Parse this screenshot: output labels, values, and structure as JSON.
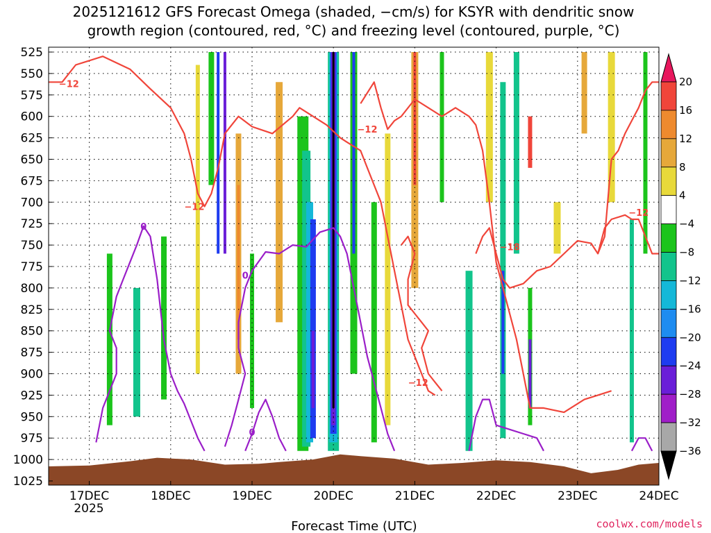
{
  "chart_data": {
    "type": "heatmap",
    "title_line1": "2025121612 GFS Forecast Omega (shaded, −cm/s) for KSYR with dendritic snow",
    "title_line2": "growth region (contoured, red, °C) and freezing level (contoured, purple, °C)",
    "xlabel": "Forecast Time (UTC)",
    "credit": "coolwx.com/models",
    "x_ticks": [
      "17DEC",
      "18DEC",
      "19DEC",
      "20DEC",
      "21DEC",
      "22DEC",
      "23DEC",
      "24DEC"
    ],
    "x_year": "2025",
    "x_range_hours": [
      -12,
      168
    ],
    "y_ticks": [
      "525",
      "550",
      "575",
      "600",
      "625",
      "650",
      "675",
      "700",
      "725",
      "750",
      "775",
      "800",
      "825",
      "850",
      "875",
      "900",
      "925",
      "950",
      "975",
      "1000",
      "1025"
    ],
    "y_range_hpa": [
      1025,
      525
    ],
    "colorbar_ticks": [
      "20",
      "16",
      "12",
      "8",
      "4",
      "−4",
      "−8",
      "−12",
      "−16",
      "−20",
      "−24",
      "−28",
      "−32",
      "−36"
    ],
    "colorbar_colors": [
      "#e8175d",
      "#f0453a",
      "#ee8a2e",
      "#e6a83a",
      "#e8d93a",
      "#ffffff",
      "#1cc41c",
      "#12c48c",
      "#14b8d8",
      "#1e8cf0",
      "#1e3cf0",
      "#6a1ed8",
      "#a01ec8",
      "#a8a8a8",
      "#000000"
    ],
    "omega_columns": [
      {
        "hour": 6,
        "width": 8,
        "top": 760,
        "bottom": 960,
        "color": "#1cc41c"
      },
      {
        "hour": 14,
        "width": 10,
        "top": 800,
        "bottom": 950,
        "color": "#12c48c"
      },
      {
        "hour": 22,
        "width": 8,
        "top": 740,
        "bottom": 930,
        "color": "#1cc41c"
      },
      {
        "hour": 32,
        "width": 6,
        "top": 540,
        "bottom": 900,
        "color": "#e8d93a"
      },
      {
        "hour": 36,
        "width": 8,
        "top": 525,
        "bottom": 680,
        "color": "#1cc41c"
      },
      {
        "hour": 38,
        "width": 4,
        "top": 525,
        "bottom": 760,
        "color": "#1e3cf0"
      },
      {
        "hour": 40,
        "width": 4,
        "top": 525,
        "bottom": 760,
        "color": "#6a1ed8"
      },
      {
        "hour": 44,
        "width": 8,
        "top": 620,
        "bottom": 900,
        "color": "#e6a83a"
      },
      {
        "hour": 44,
        "width": 4,
        "top": 680,
        "bottom": 860,
        "color": "#ee8a2e"
      },
      {
        "hour": 48,
        "width": 6,
        "top": 760,
        "bottom": 940,
        "color": "#1cc41c"
      },
      {
        "hour": 56,
        "width": 10,
        "top": 560,
        "bottom": 840,
        "color": "#e6a83a"
      },
      {
        "hour": 63,
        "width": 16,
        "top": 600,
        "bottom": 990,
        "color": "#1cc41c"
      },
      {
        "hour": 64,
        "width": 12,
        "top": 640,
        "bottom": 985,
        "color": "#12c48c"
      },
      {
        "hour": 65,
        "width": 10,
        "top": 700,
        "bottom": 980,
        "color": "#14b8d8"
      },
      {
        "hour": 66,
        "width": 8,
        "top": 720,
        "bottom": 975,
        "color": "#1e3cf0"
      },
      {
        "hour": 66,
        "width": 4,
        "top": 850,
        "bottom": 940,
        "color": "#6a1ed8"
      },
      {
        "hour": 72,
        "width": 16,
        "top": 525,
        "bottom": 990,
        "color": "#12c48c"
      },
      {
        "hour": 72,
        "width": 12,
        "top": 525,
        "bottom": 980,
        "color": "#14b8d8"
      },
      {
        "hour": 72,
        "width": 9,
        "top": 525,
        "bottom": 970,
        "color": "#1e3cf0"
      },
      {
        "hour": 72,
        "width": 6,
        "top": 525,
        "bottom": 960,
        "color": "#6a1ed8"
      },
      {
        "hour": 72,
        "width": 3,
        "top": 525,
        "bottom": 940,
        "color": "#000000"
      },
      {
        "hour": 78,
        "width": 10,
        "top": 525,
        "bottom": 900,
        "color": "#1cc41c"
      },
      {
        "hour": 78,
        "width": 4,
        "top": 525,
        "bottom": 760,
        "color": "#1e3cf0"
      },
      {
        "hour": 84,
        "width": 8,
        "top": 700,
        "bottom": 980,
        "color": "#1cc41c"
      },
      {
        "hour": 88,
        "width": 8,
        "top": 620,
        "bottom": 960,
        "color": "#e8d93a"
      },
      {
        "hour": 96,
        "width": 10,
        "top": 525,
        "bottom": 800,
        "color": "#e6a83a"
      },
      {
        "hour": 96,
        "width": 4,
        "top": 525,
        "bottom": 680,
        "color": "#f0453a"
      },
      {
        "hour": 104,
        "width": 6,
        "top": 525,
        "bottom": 700,
        "color": "#1cc41c"
      },
      {
        "hour": 112,
        "width": 10,
        "top": 780,
        "bottom": 990,
        "color": "#12c48c"
      },
      {
        "hour": 118,
        "width": 10,
        "top": 525,
        "bottom": 700,
        "color": "#e8d93a"
      },
      {
        "hour": 122,
        "width": 8,
        "top": 560,
        "bottom": 975,
        "color": "#12c48c"
      },
      {
        "hour": 122,
        "width": 4,
        "top": 780,
        "bottom": 900,
        "color": "#1e3cf0"
      },
      {
        "hour": 126,
        "width": 8,
        "top": 525,
        "bottom": 760,
        "color": "#12c48c"
      },
      {
        "hour": 130,
        "width": 6,
        "top": 600,
        "bottom": 660,
        "color": "#f0453a"
      },
      {
        "hour": 130,
        "width": 6,
        "top": 800,
        "bottom": 960,
        "color": "#1cc41c"
      },
      {
        "hour": 130,
        "width": 4,
        "top": 860,
        "bottom": 940,
        "color": "#6a1ed8"
      },
      {
        "hour": 138,
        "width": 10,
        "top": 700,
        "bottom": 760,
        "color": "#e8d93a"
      },
      {
        "hour": 146,
        "width": 8,
        "top": 525,
        "bottom": 620,
        "color": "#e6a83a"
      },
      {
        "hour": 154,
        "width": 10,
        "top": 525,
        "bottom": 700,
        "color": "#e8d93a"
      },
      {
        "hour": 160,
        "width": 6,
        "top": 720,
        "bottom": 980,
        "color": "#12c48c"
      },
      {
        "hour": 164,
        "width": 6,
        "top": 525,
        "bottom": 760,
        "color": "#1cc41c"
      }
    ],
    "dgz_contours": [
      {
        "label": "−12",
        "label_hour": -6,
        "label_hpa": 562,
        "points": [
          [
            -12,
            560
          ],
          [
            -8,
            560
          ],
          [
            -4,
            540
          ],
          [
            4,
            530
          ],
          [
            12,
            545
          ],
          [
            18,
            568
          ],
          [
            24,
            590
          ],
          [
            28,
            620
          ],
          [
            30,
            650
          ],
          [
            32,
            690
          ],
          [
            34,
            705
          ],
          [
            36,
            690
          ],
          [
            38,
            660
          ],
          [
            40,
            620
          ],
          [
            44,
            600
          ],
          [
            48,
            612
          ],
          [
            54,
            620
          ],
          [
            60,
            600
          ],
          [
            62,
            590
          ],
          [
            66,
            600
          ]
        ]
      },
      {
        "label": "−12",
        "label_hour": 31,
        "label_hpa": 705,
        "points": [
          [
            66,
            600
          ],
          [
            70,
            610
          ],
          [
            74,
            625
          ],
          [
            76,
            630
          ],
          [
            80,
            640
          ],
          [
            82,
            660
          ],
          [
            84,
            680
          ],
          [
            86,
            700
          ],
          [
            88,
            740
          ],
          [
            90,
            780
          ],
          [
            92,
            820
          ],
          [
            94,
            860
          ],
          [
            96,
            880
          ],
          [
            98,
            900
          ],
          [
            100,
            920
          ],
          [
            102,
            925
          ]
        ]
      },
      {
        "label": "−12",
        "label_hour": 82,
        "label_hpa": 615,
        "points": [
          [
            80,
            585
          ],
          [
            84,
            560
          ],
          [
            86,
            590
          ],
          [
            88,
            615
          ],
          [
            90,
            605
          ],
          [
            92,
            600
          ],
          [
            96,
            580
          ],
          [
            100,
            590
          ],
          [
            104,
            600
          ],
          [
            108,
            590
          ],
          [
            112,
            600
          ],
          [
            114,
            610
          ],
          [
            116,
            640
          ],
          [
            118,
            700
          ],
          [
            120,
            770
          ],
          [
            122,
            800
          ],
          [
            124,
            830
          ],
          [
            126,
            860
          ],
          [
            128,
            900
          ],
          [
            130,
            940
          ],
          [
            134,
            940
          ],
          [
            140,
            945
          ],
          [
            146,
            930
          ],
          [
            150,
            925
          ],
          [
            154,
            920
          ]
        ]
      },
      {
        "label": "−18",
        "label_hour": 124,
        "label_hpa": 752,
        "points": [
          [
            114,
            760
          ],
          [
            116,
            740
          ],
          [
            118,
            730
          ],
          [
            120,
            760
          ],
          [
            122,
            790
          ],
          [
            124,
            800
          ],
          [
            128,
            795
          ],
          [
            132,
            780
          ],
          [
            136,
            775
          ],
          [
            140,
            760
          ],
          [
            144,
            745
          ],
          [
            148,
            748
          ],
          [
            150,
            760
          ],
          [
            152,
            740
          ],
          [
            154,
            650
          ],
          [
            156,
            640
          ],
          [
            158,
            620
          ],
          [
            160,
            605
          ],
          [
            162,
            590
          ],
          [
            164,
            570
          ],
          [
            166,
            560
          ],
          [
            168,
            560
          ]
        ]
      },
      {
        "label": "−12",
        "label_hour": 162,
        "label_hpa": 712,
        "points": [
          [
            150,
            760
          ],
          [
            152,
            730
          ],
          [
            154,
            720
          ],
          [
            158,
            715
          ],
          [
            160,
            720
          ],
          [
            162,
            720
          ],
          [
            164,
            740
          ],
          [
            166,
            760
          ],
          [
            168,
            760
          ]
        ]
      },
      {
        "label": "−12",
        "label_hour": 97,
        "label_hpa": 910,
        "points": [
          [
            92,
            750
          ],
          [
            94,
            740
          ],
          [
            96,
            760
          ],
          [
            94,
            790
          ],
          [
            94,
            820
          ],
          [
            96,
            830
          ],
          [
            98,
            840
          ],
          [
            100,
            850
          ],
          [
            98,
            870
          ],
          [
            100,
            900
          ],
          [
            102,
            910
          ],
          [
            104,
            920
          ]
        ]
      }
    ],
    "freezing_contours": [
      {
        "label": "0",
        "label_hour": 16,
        "label_hpa": 728,
        "points": [
          [
            2,
            980
          ],
          [
            4,
            940
          ],
          [
            6,
            920
          ],
          [
            8,
            900
          ],
          [
            8,
            870
          ],
          [
            6,
            850
          ],
          [
            8,
            810
          ],
          [
            10,
            790
          ],
          [
            12,
            770
          ],
          [
            14,
            750
          ],
          [
            16,
            728
          ],
          [
            18,
            740
          ],
          [
            20,
            790
          ],
          [
            22,
            860
          ],
          [
            24,
            900
          ],
          [
            26,
            920
          ],
          [
            28,
            935
          ],
          [
            30,
            955
          ],
          [
            32,
            975
          ],
          [
            34,
            990
          ]
        ]
      },
      {
        "label": "0",
        "label_hour": 46,
        "label_hpa": 785,
        "points": [
          [
            40,
            985
          ],
          [
            42,
            960
          ],
          [
            44,
            930
          ],
          [
            46,
            900
          ],
          [
            44,
            870
          ],
          [
            44,
            840
          ],
          [
            46,
            800
          ],
          [
            48,
            780
          ],
          [
            52,
            758
          ],
          [
            56,
            760
          ],
          [
            60,
            750
          ],
          [
            64,
            752
          ],
          [
            68,
            735
          ],
          [
            72,
            730
          ],
          [
            74,
            740
          ],
          [
            76,
            760
          ],
          [
            78,
            800
          ],
          [
            80,
            840
          ],
          [
            82,
            880
          ],
          [
            84,
            910
          ],
          [
            86,
            940
          ],
          [
            88,
            970
          ],
          [
            90,
            990
          ]
        ]
      },
      {
        "label": "0",
        "label_hour": 48,
        "label_hpa": 968,
        "points": [
          [
            46,
            990
          ],
          [
            48,
            970
          ],
          [
            50,
            945
          ],
          [
            52,
            930
          ],
          [
            54,
            950
          ],
          [
            56,
            975
          ],
          [
            58,
            990
          ]
        ]
      },
      {
        "label": "",
        "label_hour": 0,
        "label_hpa": 0,
        "points": [
          [
            112,
            990
          ],
          [
            114,
            950
          ],
          [
            116,
            930
          ],
          [
            118,
            930
          ],
          [
            120,
            960
          ],
          [
            124,
            965
          ],
          [
            128,
            970
          ],
          [
            132,
            975
          ],
          [
            134,
            990
          ]
        ]
      },
      {
        "label": "",
        "label_hour": 0,
        "label_hpa": 0,
        "points": [
          [
            160,
            990
          ],
          [
            162,
            975
          ],
          [
            164,
            975
          ],
          [
            166,
            990
          ]
        ]
      }
    ],
    "terrain": [
      [
        -12,
        1008
      ],
      [
        0,
        1007
      ],
      [
        12,
        1002
      ],
      [
        20,
        998
      ],
      [
        30,
        1000
      ],
      [
        40,
        1006
      ],
      [
        50,
        1005
      ],
      [
        56,
        1003
      ],
      [
        66,
        1000
      ],
      [
        74,
        994
      ],
      [
        80,
        996
      ],
      [
        90,
        999
      ],
      [
        100,
        1006
      ],
      [
        110,
        1004
      ],
      [
        120,
        1001
      ],
      [
        130,
        1003
      ],
      [
        140,
        1008
      ],
      [
        148,
        1016
      ],
      [
        156,
        1012
      ],
      [
        162,
        1006
      ],
      [
        168,
        1004
      ]
    ]
  }
}
